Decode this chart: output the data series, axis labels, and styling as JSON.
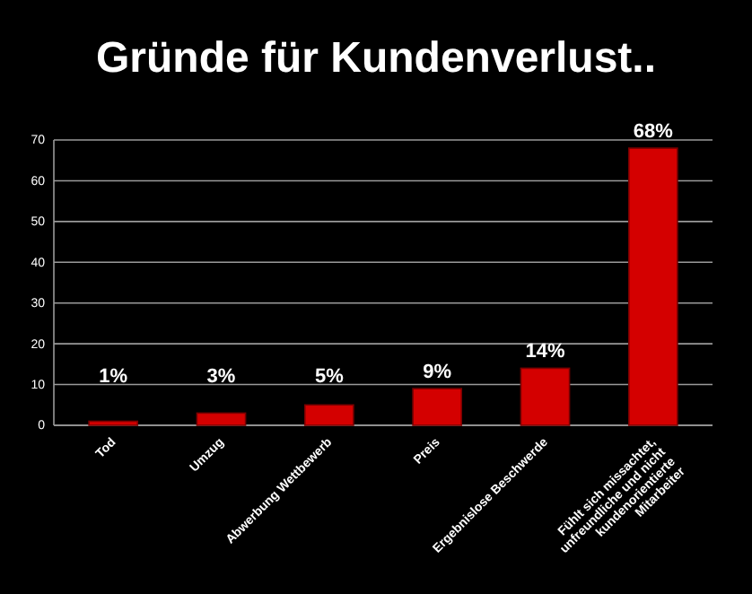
{
  "chart_data": {
    "type": "bar",
    "title": "Gründe für Kundenverlust..",
    "categories": [
      "Tod",
      "Umzug",
      "Abwerbung Wettbewerb",
      "Preis",
      "Ergebnislose Beschwerde",
      "Fühlt sich missachtet,\nunfreundliche und nicht\nkundenorientierte\nMitarbeiter"
    ],
    "values": [
      1,
      3,
      5,
      9,
      14,
      68
    ],
    "color": "#d40000",
    "value_labels": [
      "1%",
      "3%",
      "5%",
      "9%",
      "14%",
      "68%"
    ],
    "ylim": [
      0,
      70
    ],
    "yticks": [
      0,
      10,
      20,
      30,
      40,
      50,
      60,
      70
    ],
    "grid": "y"
  }
}
